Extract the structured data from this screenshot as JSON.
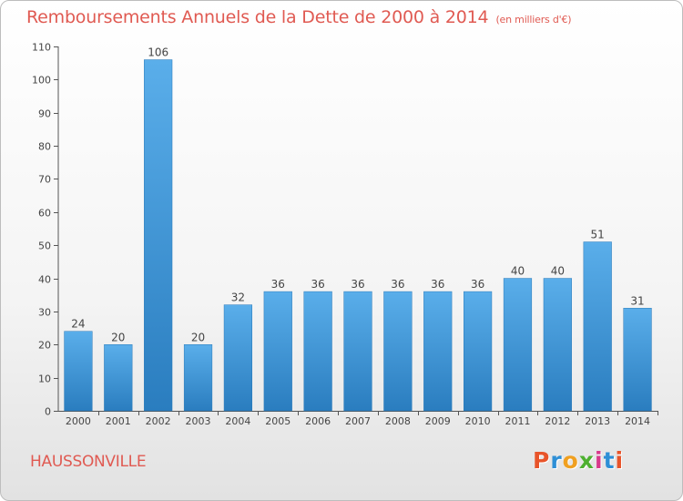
{
  "header": {
    "title": "Remboursements Annuels de la Dette de 2000 à 2014",
    "unit": "(en milliers d'€)"
  },
  "footer": {
    "commune": "HAUSSONVILLE",
    "logo_text": "Proxiti"
  },
  "colors": {
    "title": "#e05a52",
    "bar_top": "#5aaeea",
    "bar_bottom": "#2a7dbf",
    "axis": "#555555",
    "grid": "#dddddd"
  },
  "chart_data": {
    "type": "bar",
    "title": "Remboursements Annuels de la Dette de 2000 à 2014",
    "subtitle": "(en milliers d'€)",
    "xlabel": "",
    "ylabel": "",
    "ylim": [
      0,
      110
    ],
    "yticks": [
      0,
      10,
      20,
      30,
      40,
      50,
      60,
      70,
      80,
      90,
      100,
      110
    ],
    "categories": [
      "2000",
      "2001",
      "2002",
      "2003",
      "2004",
      "2005",
      "2006",
      "2007",
      "2008",
      "2009",
      "2010",
      "2011",
      "2012",
      "2013",
      "2014"
    ],
    "values": [
      24,
      20,
      106,
      20,
      32,
      36,
      36,
      36,
      36,
      36,
      36,
      40,
      40,
      51,
      31
    ],
    "grid": false,
    "legend": "none"
  }
}
